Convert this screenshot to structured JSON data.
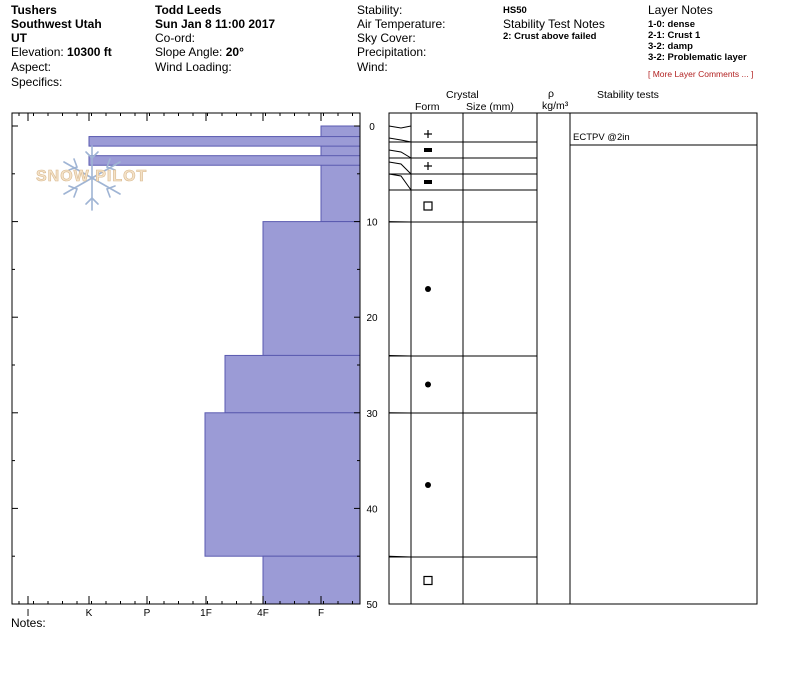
{
  "header": {
    "location": "Tushers",
    "region": "Southwest Utah",
    "state": "UT",
    "elevation_label": "Elevation:",
    "elevation_value": "10300 ft",
    "aspect_label": "Aspect:",
    "specifics_label": "Specifics:",
    "observer": "Todd Leeds",
    "datetime": "Sun Jan 8 11:00 2017",
    "coord_label": "Co-ord:",
    "slope_label": "Slope Angle:",
    "slope_value": "20°",
    "wind_loading_label": "Wind Loading:",
    "stability_label": "Stability:",
    "air_temp_label": "Air Temperature:",
    "sky_cover_label": "Sky Cover:",
    "precip_label": "Precipitation:",
    "wind_label": "Wind:",
    "hs": "HS50",
    "stability_notes_title": "Stability Test Notes",
    "stability_notes": [
      "2: Crust above failed"
    ],
    "layer_notes_title": "Layer Notes",
    "layer_notes": [
      "1-0: dense",
      "2-1: Crust 1",
      "3-2: damp",
      "3-2: Problematic layer"
    ],
    "more_comments": "[ More Layer Comments ... ]",
    "notes_label": "Notes:"
  },
  "logo": {
    "text": "SNOW PILOT"
  },
  "columns": {
    "crystal": "Crystal",
    "form": "Form",
    "size": "Size (mm)",
    "rho": "ρ",
    "density_unit": "kg/m³",
    "stability_tests": "Stability tests"
  },
  "colors": {
    "bar_fill": "#9b9bd6",
    "bar_stroke": "#5a5ab0"
  },
  "chart_data": {
    "type": "bar",
    "orientation": "horizontal",
    "x_axis": {
      "tick_labels": [
        "I",
        "K",
        "P",
        "1F",
        "4F",
        "F"
      ]
    },
    "y_axis": {
      "range": [
        0,
        50
      ],
      "tick_labels": [
        "0",
        "10",
        "20",
        "30",
        "40",
        "50"
      ]
    },
    "hardness_layers": [
      {
        "top": 0,
        "bottom": 10,
        "hardness": "F"
      },
      {
        "top": 10,
        "bottom": 24,
        "hardness": "4F"
      },
      {
        "top": 24,
        "bottom": 30,
        "hardness": "4F-"
      },
      {
        "top": 30,
        "bottom": 45,
        "hardness": "1F+"
      },
      {
        "top": 45,
        "bottom": 50,
        "hardness": "4F"
      }
    ],
    "crusts": [
      {
        "top": 1,
        "bottom": 2,
        "hardness": "K-"
      },
      {
        "top": 3,
        "bottom": 4,
        "hardness": "K-"
      }
    ],
    "layers": [
      {
        "top": 0,
        "bottom": 2,
        "form": "plus"
      },
      {
        "top": 2,
        "bottom": 4,
        "form": "bar"
      },
      {
        "top": 4,
        "bottom": 6,
        "form": "plus"
      },
      {
        "top": 6,
        "bottom": 8,
        "form": "bar"
      },
      {
        "top": 8,
        "bottom": 10,
        "form": "square"
      },
      {
        "top": 10,
        "bottom": 24,
        "form": "dot"
      },
      {
        "top": 24,
        "bottom": 30,
        "form": "dot"
      },
      {
        "top": 30,
        "bottom": 45,
        "form": "dot"
      },
      {
        "top": 45,
        "bottom": 50,
        "form": "square"
      }
    ],
    "stability_tests": [
      {
        "text": "ECTPV @2in",
        "depth": 2.5
      }
    ]
  }
}
